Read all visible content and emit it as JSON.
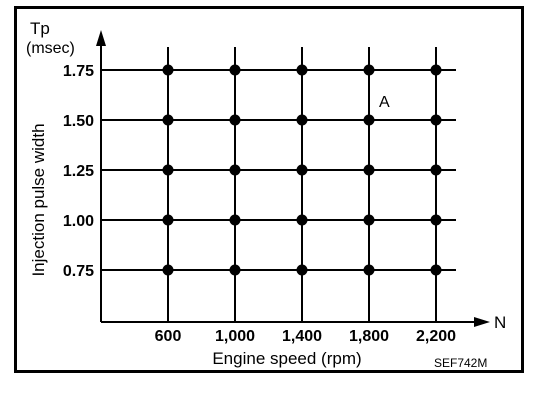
{
  "chart_data": {
    "type": "scatter",
    "x_axis_symbol": "N",
    "y_axis_symbol": "Tp",
    "y_unit": "(msec)",
    "xlabel": "Engine speed (rpm)",
    "ylabel": "Injection pulse width",
    "x_ticks": [
      600,
      1000,
      1400,
      1800,
      2200
    ],
    "x_tick_labels": [
      "600",
      "1,000",
      "1,400",
      "1,800",
      "2,200"
    ],
    "y_ticks": [
      0.75,
      1.0,
      1.25,
      1.5,
      1.75
    ],
    "y_tick_labels": [
      "0.75",
      "1.00",
      "1.25",
      "1.50",
      "1.75"
    ],
    "points_description": "grid of operating points at every combination of x_ticks and y_ticks",
    "annotation": {
      "text": "A",
      "x": 1800,
      "y": 1.5
    },
    "grid": true,
    "figure_code": "SEF742M"
  }
}
